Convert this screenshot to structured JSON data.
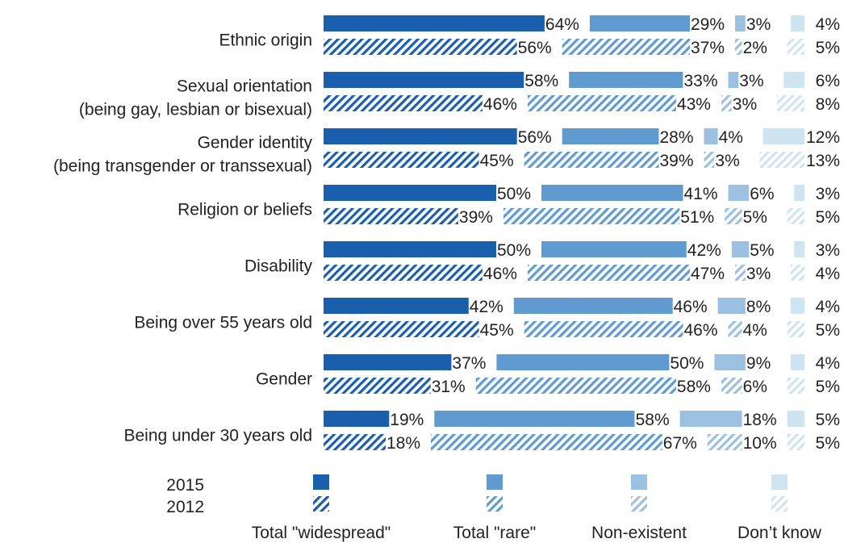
{
  "chart_data": {
    "type": "bar",
    "orientation": "horizontal",
    "stacked": true,
    "categories": [
      [
        "Ethnic origin"
      ],
      [
        "Sexual orientation",
        "(being gay, lesbian or bisexual)"
      ],
      [
        "Gender identity",
        "(being transgender or transsexual)"
      ],
      [
        "Religion or beliefs"
      ],
      [
        "Disability"
      ],
      [
        "Being over 55 years old"
      ],
      [
        "Gender"
      ],
      [
        "Being under 30 years old"
      ]
    ],
    "segments": [
      {
        "name": "Total \"widespread\"",
        "color": "#1a5fad"
      },
      {
        "name": "Total \"rare\"",
        "color": "#5f9bd0"
      },
      {
        "name": "Non-existent",
        "color": "#9cc0e2"
      },
      {
        "name": "Don’t know",
        "color": "#cfe4f1"
      }
    ],
    "years": [
      {
        "name": "2015",
        "pattern": "solid"
      },
      {
        "name": "2012",
        "pattern": "hatched"
      }
    ],
    "series": [
      {
        "name": "2015",
        "values": [
          [
            64,
            29,
            3,
            4
          ],
          [
            58,
            33,
            3,
            6
          ],
          [
            56,
            28,
            4,
            12
          ],
          [
            50,
            41,
            6,
            3
          ],
          [
            50,
            42,
            5,
            3
          ],
          [
            42,
            46,
            8,
            4
          ],
          [
            37,
            50,
            9,
            4
          ],
          [
            19,
            58,
            18,
            5
          ]
        ]
      },
      {
        "name": "2012",
        "values": [
          [
            56,
            37,
            2,
            5
          ],
          [
            46,
            43,
            3,
            8
          ],
          [
            45,
            39,
            3,
            13
          ],
          [
            39,
            51,
            5,
            5
          ],
          [
            46,
            47,
            3,
            4
          ],
          [
            45,
            46,
            4,
            5
          ],
          [
            31,
            58,
            6,
            5
          ],
          [
            18,
            67,
            10,
            5
          ]
        ]
      }
    ],
    "value_suffix": "%",
    "xlim": [
      0,
      100
    ],
    "legend_position": "bottom"
  }
}
